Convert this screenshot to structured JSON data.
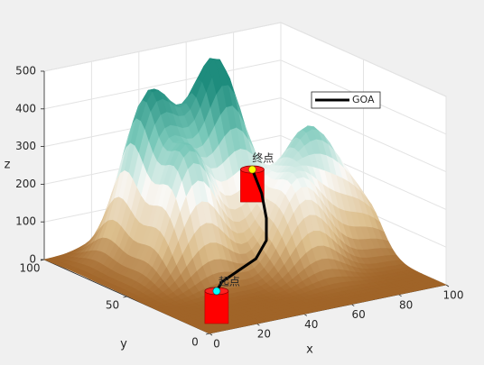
{
  "chart_data": {
    "type": "surface3d",
    "xlabel": "x",
    "ylabel": "y",
    "zlabel": "z",
    "xlim": [
      0,
      100
    ],
    "ylim": [
      0,
      100
    ],
    "zlim": [
      0,
      500
    ],
    "xticks": [
      0,
      20,
      40,
      60,
      80,
      100
    ],
    "yticks": [
      0,
      50,
      100
    ],
    "zticks": [
      0,
      100,
      200,
      300,
      400,
      500
    ],
    "grid": true,
    "peaks": [
      {
        "x": 30,
        "y": 80,
        "z": 420
      },
      {
        "x": 54,
        "y": 75,
        "z": 450
      },
      {
        "x": 30,
        "y": 56,
        "z": 320
      },
      {
        "x": 80,
        "y": 56,
        "z": 290
      },
      {
        "x": 65,
        "y": 40,
        "z": 220
      },
      {
        "x": 55,
        "y": 61,
        "z": 140
      },
      {
        "x": 95,
        "y": 48,
        "z": 130
      }
    ],
    "series": [
      {
        "name": "GOA",
        "color": "#000000",
        "x": [
          10,
          15,
          25,
          35,
          45,
          52,
          57,
          60
        ],
        "y": [
          10,
          14,
          18,
          22,
          30,
          40,
          50,
          60
        ],
        "z": [
          80,
          90,
          100,
          110,
          130,
          160,
          200,
          240
        ]
      }
    ],
    "annotations": [
      {
        "text": "起点"
      },
      {
        "text": "终点"
      }
    ]
  }
}
